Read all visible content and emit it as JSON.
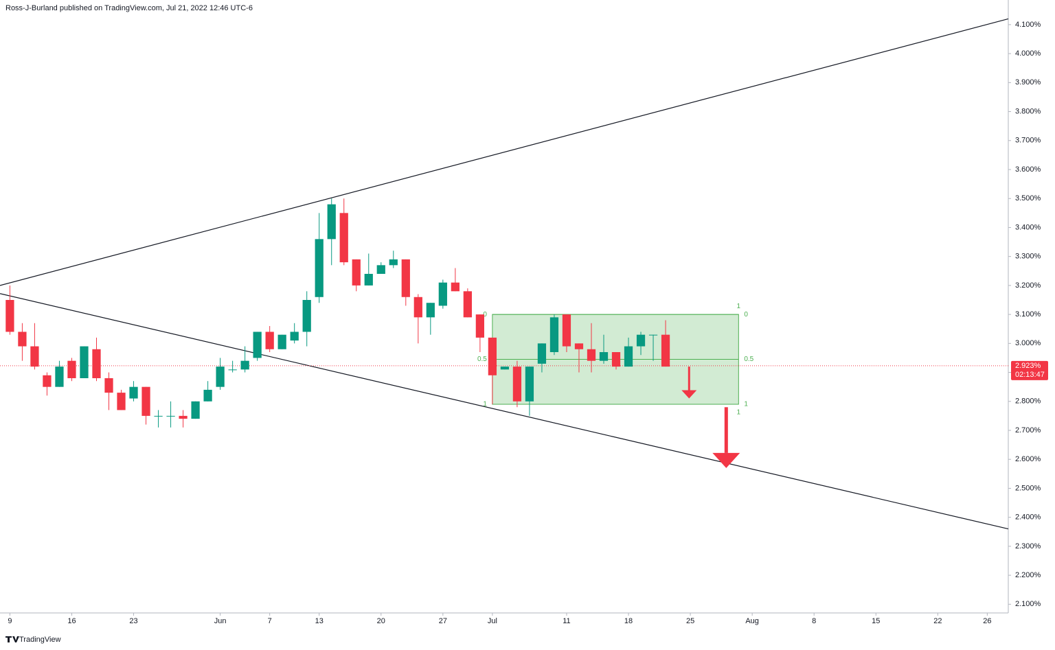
{
  "header": "Ross-J-Burland published on TradingView.com, Jul 21, 2022 12:46 UTC-6",
  "footer": "TradingView",
  "chart_data": {
    "type": "candlestick",
    "up_color": "#089981",
    "down_color": "#f23645",
    "x": [
      0,
      1,
      2,
      3,
      4,
      5,
      6,
      7,
      8,
      9,
      10,
      11,
      12,
      13,
      14,
      15,
      16,
      17,
      18,
      19,
      20,
      21,
      22,
      23,
      24,
      25,
      26,
      27,
      28,
      29,
      30,
      31,
      32,
      33,
      34,
      35,
      36,
      37,
      38,
      39,
      40,
      41,
      42,
      43,
      44,
      45,
      46,
      47,
      48,
      49,
      50,
      51,
      52,
      53
    ],
    "open": [
      3.15,
      3.04,
      2.99,
      2.89,
      2.85,
      2.94,
      2.88,
      2.98,
      2.88,
      2.83,
      2.81,
      2.85,
      2.75,
      2.75,
      2.75,
      2.74,
      2.8,
      2.85,
      2.91,
      2.91,
      2.95,
      3.04,
      2.98,
      3.01,
      3.04,
      3.16,
      3.36,
      3.45,
      3.29,
      3.2,
      3.24,
      3.27,
      3.29,
      3.16,
      3.09,
      3.13,
      3.21,
      3.18,
      3.1,
      3.02,
      2.91,
      2.92,
      2.8,
      2.93,
      2.97,
      3.1,
      3.0,
      2.98,
      2.94,
      2.97,
      2.92,
      2.99,
      3.03,
      3.03
    ],
    "high": [
      3.2,
      3.07,
      3.07,
      2.9,
      2.94,
      2.95,
      2.99,
      3.02,
      2.9,
      2.84,
      2.87,
      2.85,
      2.77,
      2.8,
      2.77,
      2.8,
      2.87,
      2.95,
      2.94,
      2.99,
      3.04,
      3.06,
      3.03,
      3.07,
      3.18,
      3.45,
      3.5,
      3.5,
      3.29,
      3.31,
      3.28,
      3.32,
      3.29,
      3.17,
      3.14,
      3.22,
      3.26,
      3.19,
      3.1,
      3.02,
      2.92,
      2.94,
      2.92,
      3.0,
      3.1,
      3.1,
      3.0,
      3.07,
      3.03,
      2.97,
      3.02,
      3.04,
      3.03,
      3.08
    ],
    "low": [
      3.03,
      2.94,
      2.91,
      2.82,
      2.85,
      2.87,
      2.88,
      2.87,
      2.77,
      2.77,
      2.8,
      2.72,
      2.71,
      2.71,
      2.71,
      2.74,
      2.8,
      2.84,
      2.9,
      2.9,
      2.94,
      2.97,
      2.98,
      3.0,
      2.99,
      3.14,
      3.27,
      3.27,
      3.18,
      3.2,
      3.24,
      3.26,
      3.13,
      3.0,
      3.03,
      3.12,
      3.18,
      3.09,
      2.97,
      2.79,
      2.91,
      2.78,
      2.75,
      2.9,
      2.96,
      2.97,
      2.9,
      2.9,
      2.93,
      2.91,
      2.92,
      2.96,
      2.94,
      2.92
    ],
    "close": [
      3.04,
      2.99,
      2.92,
      2.85,
      2.92,
      2.88,
      2.99,
      2.88,
      2.83,
      2.77,
      2.85,
      2.75,
      2.75,
      2.75,
      2.74,
      2.8,
      2.84,
      2.92,
      2.91,
      2.94,
      3.04,
      2.98,
      3.03,
      3.04,
      3.15,
      3.36,
      3.48,
      3.28,
      3.2,
      3.24,
      3.27,
      3.29,
      3.16,
      3.09,
      3.14,
      3.21,
      3.18,
      3.09,
      3.02,
      2.89,
      2.92,
      2.8,
      2.92,
      3.0,
      3.09,
      2.99,
      2.98,
      2.94,
      2.97,
      2.92,
      2.99,
      3.03,
      3.03,
      2.92
    ],
    "xlim": [
      -0.8,
      80.7
    ],
    "xticks": [
      {
        "value": 0,
        "label": "9"
      },
      {
        "value": 5,
        "label": "16"
      },
      {
        "value": 10,
        "label": "23"
      },
      {
        "value": 17,
        "label": "Jun"
      },
      {
        "value": 21,
        "label": "7"
      },
      {
        "value": 25,
        "label": "13"
      },
      {
        "value": 30,
        "label": "20"
      },
      {
        "value": 35,
        "label": "27"
      },
      {
        "value": 39,
        "label": "Jul"
      },
      {
        "value": 45,
        "label": "11"
      },
      {
        "value": 50,
        "label": "18"
      },
      {
        "value": 55,
        "label": "25"
      },
      {
        "value": 60,
        "label": "Aug"
      },
      {
        "value": 65,
        "label": "8"
      },
      {
        "value": 70,
        "label": "15"
      },
      {
        "value": 75,
        "label": "22"
      },
      {
        "value": 79,
        "label": "26"
      }
    ],
    "ylim": [
      2.07,
      4.185
    ],
    "yticks": [
      {
        "value": 2.1,
        "label": "2.100%"
      },
      {
        "value": 2.2,
        "label": "2.200%"
      },
      {
        "value": 2.3,
        "label": "2.300%"
      },
      {
        "value": 2.4,
        "label": "2.400%"
      },
      {
        "value": 2.5,
        "label": "2.500%"
      },
      {
        "value": 2.6,
        "label": "2.600%"
      },
      {
        "value": 2.7,
        "label": "2.700%"
      },
      {
        "value": 2.8,
        "label": "2.800%"
      },
      {
        "value": 2.9,
        "label": "2.900%"
      },
      {
        "value": 3.0,
        "label": "3.000%"
      },
      {
        "value": 3.1,
        "label": "3.100%"
      },
      {
        "value": 3.2,
        "label": "3.200%"
      },
      {
        "value": 3.3,
        "label": "3.300%"
      },
      {
        "value": 3.4,
        "label": "3.400%"
      },
      {
        "value": 3.5,
        "label": "3.500%"
      },
      {
        "value": 3.6,
        "label": "3.600%"
      },
      {
        "value": 3.7,
        "label": "3.700%"
      },
      {
        "value": 3.8,
        "label": "3.800%"
      },
      {
        "value": 3.9,
        "label": "3.900%"
      },
      {
        "value": 4.0,
        "label": "4.000%"
      },
      {
        "value": 4.1,
        "label": "4.100%"
      }
    ],
    "trendlines": [
      {
        "x": [
          -0.8,
          80.7
        ],
        "y": [
          3.2,
          4.12
        ],
        "color": "#131722"
      },
      {
        "x": [
          -0.8,
          80.7
        ],
        "y": [
          3.172,
          2.36
        ],
        "color": "#131722"
      }
    ],
    "range_box": {
      "x": [
        39,
        58.9
      ],
      "color": "#4caf50",
      "levels": [
        {
          "value": 3.1,
          "label": "0"
        },
        {
          "value": 2.945,
          "label": "0.5"
        },
        {
          "value": 2.79,
          "label": "1"
        }
      ]
    },
    "arrows": [
      {
        "x": 54.9,
        "from": 2.92,
        "to": 2.81,
        "color": "#f23645"
      },
      {
        "x": 57.9,
        "from": 2.78,
        "to": 2.57,
        "color": "#f23645"
      }
    ],
    "last_price": {
      "value": 2.923,
      "label": "2.923%",
      "countdown": "02:13:47",
      "color": "#f23645"
    }
  }
}
